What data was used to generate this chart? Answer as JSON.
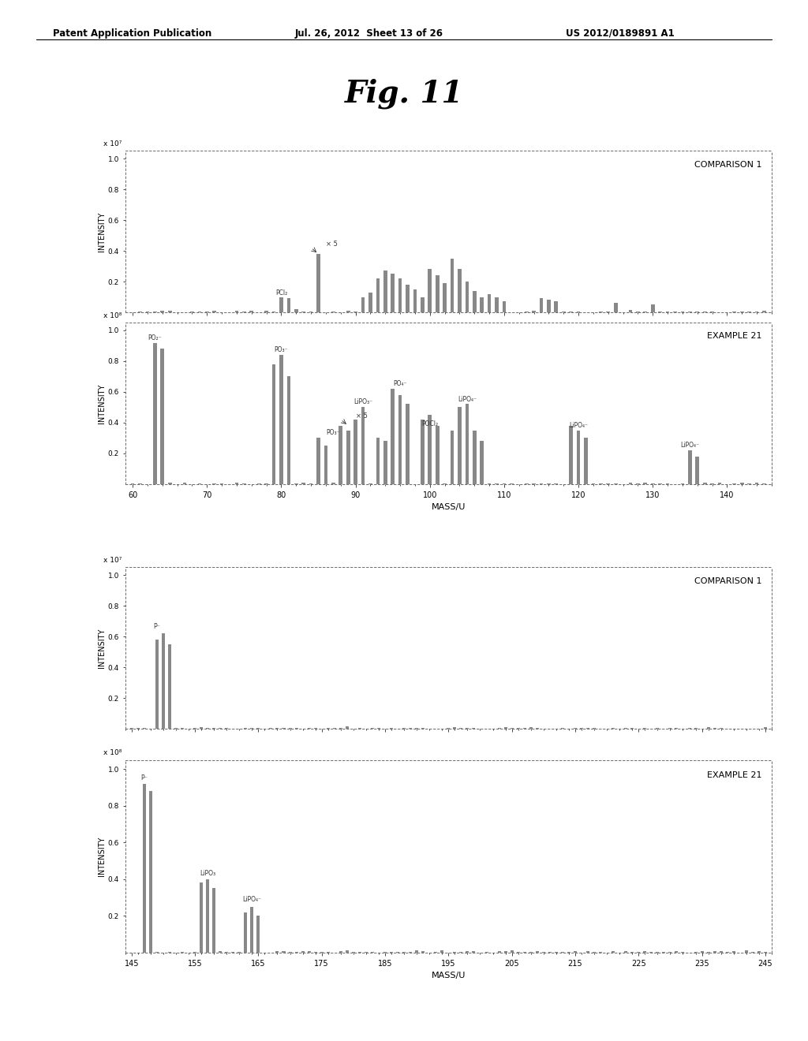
{
  "title": "Fig. 11",
  "header_left": "Patent Application Publication",
  "header_mid": "Jul. 26, 2012  Sheet 13 of 26",
  "header_right": "US 2012/0189891 A1",
  "panel1_label": "COMPARISON 1",
  "panel2_label": "EXAMPLE 21",
  "panel3_label": "COMPARISON 1",
  "panel4_label": "EXAMPLE 21",
  "top_xlabel": "MASS/U",
  "bottom_xlabel": "MASS/U",
  "ylabel": "INTENSITY",
  "scale1": "x 10⁷",
  "scale2": "x 10⁸",
  "scale3": "x 10⁷",
  "scale4": "x 10⁸",
  "xlim1": [
    60,
    145
  ],
  "xlim2": [
    145,
    245
  ],
  "background_color": "#ffffff",
  "bar_color": "#888888",
  "text_color": "#333333"
}
